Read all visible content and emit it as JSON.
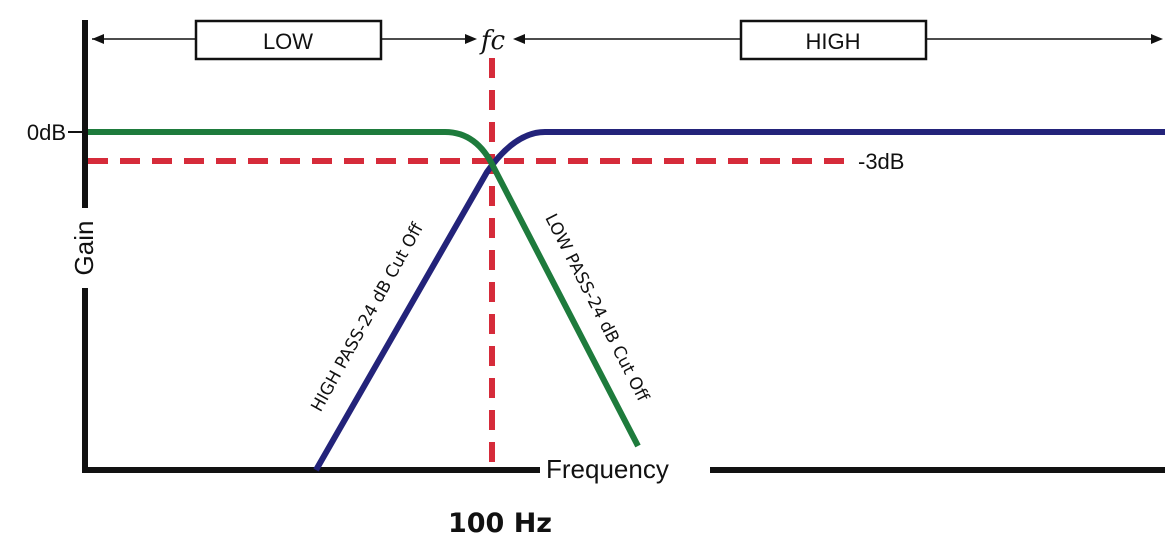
{
  "bands": {
    "low_label": "LOW",
    "high_label": "HIGH"
  },
  "cutoff": {
    "symbol": "fc",
    "frequency_label": "100 Hz"
  },
  "axes": {
    "y_label": "Gain",
    "x_label": "Frequency",
    "zero_db_label": "0dB",
    "minus_3db_label": "-3dB"
  },
  "curves": {
    "high_pass_label": "HIGH PASS-24 dB Cut Off",
    "low_pass_label": "LOW PASS-24 dB Cut Off"
  },
  "colors": {
    "high_pass": "#23237a",
    "low_pass": "#1e7b3c",
    "guide": "#d62b3a",
    "axis": "#111111"
  }
}
